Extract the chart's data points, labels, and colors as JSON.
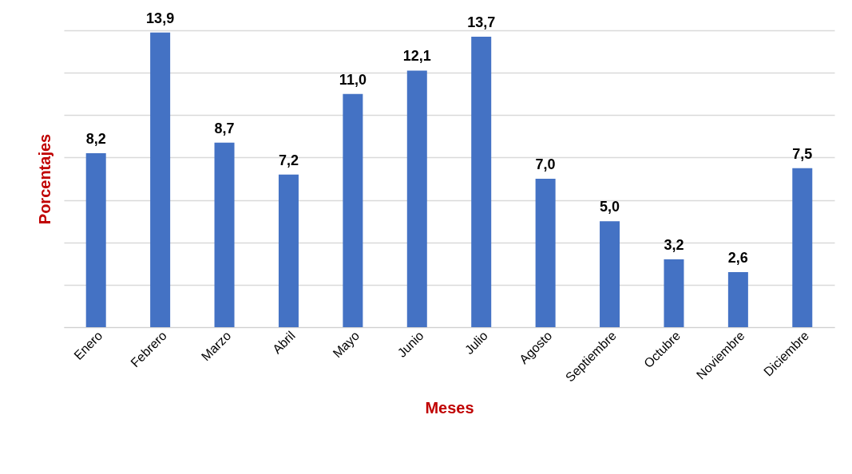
{
  "chart_data": {
    "type": "bar",
    "categories": [
      "Enero",
      "Febrero",
      "Marzo",
      "Abril",
      "Mayo",
      "Junio",
      "Julio",
      "Agosto",
      "Septiembre",
      "Octubre",
      "Noviembre",
      "Diciembre"
    ],
    "values": [
      8.2,
      13.9,
      8.7,
      7.2,
      11.0,
      12.1,
      13.7,
      7.0,
      5.0,
      3.2,
      2.6,
      7.5
    ],
    "value_labels": [
      "8,2",
      "13,9",
      "8,7",
      "7,2",
      "11,0",
      "12,1",
      "13,7",
      "7,0",
      "5,0",
      "3,2",
      "2,6",
      "7,5"
    ],
    "color": "#4472c4",
    "xlabel": "Meses",
    "ylabel": "Porcentajes",
    "grid": "y",
    "tick_labels": "x"
  }
}
